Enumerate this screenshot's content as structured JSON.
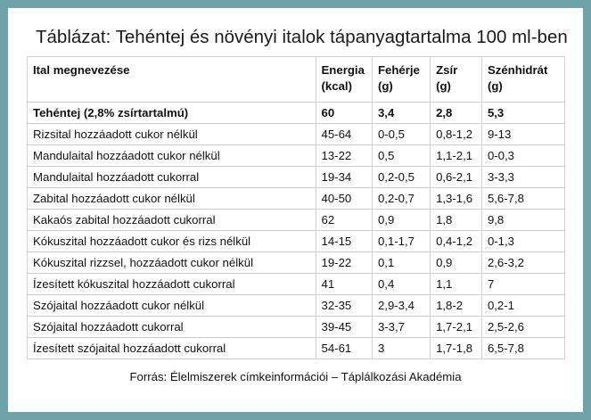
{
  "title": "Táblázat: Tehéntej és növényi italok tápanyagtartalma 100 ml-ben",
  "table": {
    "headers": {
      "name": "Ital megnevezése",
      "energy": [
        "Energia",
        "(kcal)"
      ],
      "protein": [
        "Fehérje",
        "(g)"
      ],
      "fat": [
        "Zsír",
        "(g)"
      ],
      "carbs": [
        "Szénhidrát",
        "(g)"
      ]
    },
    "rows": [
      [
        "Tehéntej (2,8% zsírtartalmú)",
        "60",
        "3,4",
        "2,8",
        "5,3"
      ],
      [
        "Rizsital hozzáadott cukor nélkül",
        "45-64",
        "0-0,5",
        "0,8-1,2",
        "9-13"
      ],
      [
        "Mandulaital hozzáadott cukor nélkül",
        "13-22",
        "0,5",
        "1,1-2,1",
        "0-0,3"
      ],
      [
        "Mandulaital hozzáadott cukorral",
        "19-34",
        "0,2-0,5",
        "0,6-2,1",
        "3-3,3"
      ],
      [
        "Zabital hozzáadott cukor nélkül",
        "40-50",
        "0,2-0,7",
        "1,3-1,6",
        "5,6-7,8"
      ],
      [
        "Kakaós zabital hozzáadott cukorral",
        "62",
        "0,9",
        "1,8",
        "9,8"
      ],
      [
        "Kókuszital hozzáadott cukor és rizs nélkül",
        "14-15",
        "0,1-1,7",
        "0,4-1,2",
        "0-1,3"
      ],
      [
        "Kókuszital rizzsel, hozzáadott cukor nélkül",
        "19-22",
        "0,1",
        "0,9",
        "2,6-3,2"
      ],
      [
        "Ízesített kókuszital hozzáadott cukorral",
        "41",
        "0,4",
        "1,1",
        "7"
      ],
      [
        "Szójaital hozzáadott cukor nélkül",
        "32-35",
        "2,9-3,4",
        "1,8-2",
        "0,2-1"
      ],
      [
        "Szójaital hozzáadott cukorral",
        "39-45",
        "3-3,7",
        "1,7-2,1",
        "2,5-2,6"
      ],
      [
        "Ízesített szójaital hozzáadott cukorral",
        "54-61",
        "3",
        "1,7-1,8",
        "6,5-7,8"
      ]
    ]
  },
  "source": "Forrás: Élelmiszerek címkeinformációi – Táplálkozási Akadémia",
  "colors": {
    "frame": "#6fa3aa",
    "card": "#ffffff",
    "grid": "#cfcfcf"
  }
}
